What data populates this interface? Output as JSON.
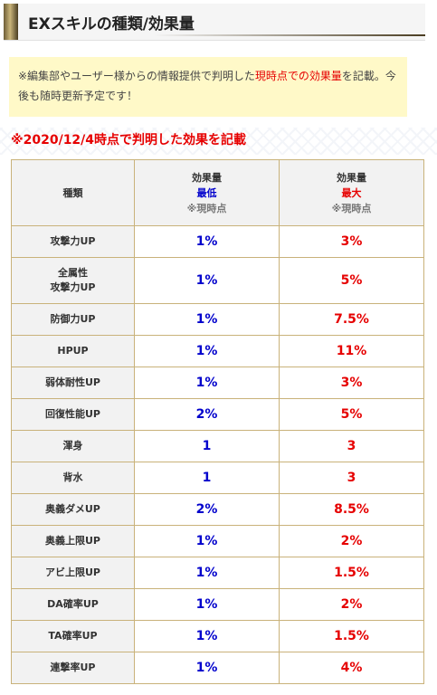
{
  "header": {
    "title": "EXスキルの種類/効果量"
  },
  "note": {
    "text_before": "※編集部やユーザー様からの情報提供で判明した",
    "text_highlight": "現時点での効果量",
    "text_after": "を記載。今後も随時更新予定です！"
  },
  "date_note": "※2020/12/4時点で判明した効果を記載",
  "table": {
    "headers": {
      "type": "種類",
      "min_label": "効果量",
      "min_sub": "最低",
      "min_note": "※現時点",
      "max_label": "効果量",
      "max_sub": "最大",
      "max_note": "※現時点"
    },
    "rows": [
      {
        "name": "攻撃力UP",
        "name2": "",
        "min": "1%",
        "max": "3%"
      },
      {
        "name": "全属性",
        "name2": "攻撃力UP",
        "min": "1%",
        "max": "5%"
      },
      {
        "name": "防御力UP",
        "name2": "",
        "min": "1%",
        "max": "7.5%"
      },
      {
        "name": "HPUP",
        "name2": "",
        "min": "1%",
        "max": "11%"
      },
      {
        "name": "弱体耐性UP",
        "name2": "",
        "min": "1%",
        "max": "3%"
      },
      {
        "name": "回復性能UP",
        "name2": "",
        "min": "2%",
        "max": "5%"
      },
      {
        "name": "渾身",
        "name2": "",
        "min": "1",
        "max": "3"
      },
      {
        "name": "背水",
        "name2": "",
        "min": "1",
        "max": "3"
      },
      {
        "name": "奥義ダメUP",
        "name2": "",
        "min": "2%",
        "max": "8.5%"
      },
      {
        "name": "奥義上限UP",
        "name2": "",
        "min": "1%",
        "max": "2%"
      },
      {
        "name": "アビ上限UP",
        "name2": "",
        "min": "1%",
        "max": "1.5%"
      },
      {
        "name": "DA確率UP",
        "name2": "",
        "min": "1%",
        "max": "2%"
      },
      {
        "name": "TA確率UP",
        "name2": "",
        "min": "1%",
        "max": "1.5%"
      },
      {
        "name": "連撃率UP",
        "name2": "",
        "min": "1%",
        "max": "4%"
      }
    ]
  },
  "colors": {
    "accent_red": "#e60000",
    "accent_blue": "#0000cc",
    "note_bg": "#fff9c8",
    "border": "#c9b27a"
  }
}
